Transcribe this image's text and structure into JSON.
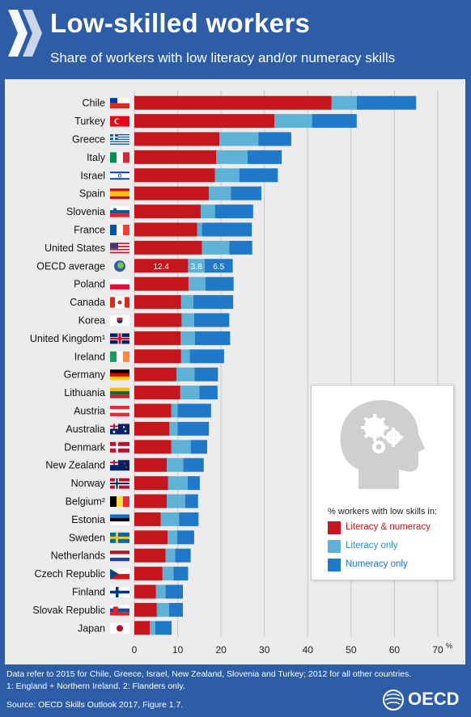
{
  "header": {
    "title": "Low-skilled workers",
    "subtitle": "Share of workers with low literacy and/or numeracy skills"
  },
  "colors": {
    "literacy_numeracy": "#c4161c",
    "literacy_only": "#5fb2d6",
    "numeracy_only": "#1f78c8",
    "background": "#2e5da8",
    "panel": "#ececec"
  },
  "legend": {
    "title": "% workers with low skills in:",
    "items": [
      "Literacy & numeracy",
      "Literacy only",
      "Numeracy only"
    ]
  },
  "chart_data": {
    "type": "bar",
    "orientation": "horizontal",
    "stacked": true,
    "categories": [
      "Chile",
      "Turkey",
      "Greece",
      "Italy",
      "Israel",
      "Spain",
      "Slovenia",
      "France",
      "United States",
      "OECD average",
      "Poland",
      "Canada",
      "Korea",
      "United Kingdom¹",
      "Ireland",
      "Germany",
      "Lithuania",
      "Austria",
      "Australia",
      "Denmark",
      "New Zealand",
      "Norway",
      "Belgium²",
      "Estonia",
      "Sweden",
      "Netherlands",
      "Czech Republic",
      "Finland",
      "Slovak Republic",
      "Japan"
    ],
    "flags": [
      "chile-flag",
      "turkey-flag",
      "greece-flag",
      "italy-flag",
      "israel-flag",
      "spain-flag",
      "slovenia-flag",
      "france-flag",
      "usa-flag",
      "oecd-globe-icon",
      "poland-flag",
      "canada-flag",
      "korea-flag",
      "uk-flag",
      "ireland-flag",
      "germany-flag",
      "lithuania-flag",
      "austria-flag",
      "australia-flag",
      "denmark-flag",
      "new-zealand-flag",
      "norway-flag",
      "belgium-flag",
      "estonia-flag",
      "sweden-flag",
      "netherlands-flag",
      "czech-flag",
      "finland-flag",
      "slovakia-flag",
      "japan-flag"
    ],
    "series": [
      {
        "name": "Literacy & numeracy",
        "values": [
          45.5,
          32.3,
          19.6,
          18.9,
          18.6,
          17.2,
          15.3,
          14.5,
          15.6,
          12.4,
          12.5,
          10.8,
          10.9,
          10.7,
          10.8,
          9.7,
          10.6,
          8.5,
          8.1,
          8.5,
          7.5,
          7.8,
          7.5,
          6.1,
          7.7,
          7.2,
          6.5,
          5.0,
          5.2,
          3.6
        ]
      },
      {
        "name": "Literacy only",
        "values": [
          5.8,
          8.7,
          9.0,
          7.2,
          5.6,
          5.1,
          3.3,
          1.1,
          6.3,
          3.8,
          3.9,
          2.8,
          2.9,
          3.3,
          2.0,
          4.2,
          4.4,
          1.5,
          1.9,
          4.5,
          3.8,
          4.5,
          4.2,
          4.2,
          2.2,
          2.2,
          2.5,
          2.2,
          2.8,
          1.2
        ]
      },
      {
        "name": "Numeracy only",
        "values": [
          13.7,
          10.3,
          7.6,
          7.9,
          8.9,
          7.0,
          8.8,
          11.5,
          5.3,
          6.5,
          6.5,
          9.2,
          8.1,
          8.1,
          7.9,
          5.4,
          4.2,
          7.7,
          7.2,
          3.8,
          4.7,
          2.8,
          3.0,
          4.5,
          3.9,
          3.6,
          3.4,
          4.0,
          3.2,
          3.8
        ]
      }
    ],
    "data_labels": {
      "row": "OECD average",
      "values": [
        "12.4",
        "3.8",
        "6.5"
      ]
    },
    "xlim": [
      0,
      70
    ],
    "xticks": [
      "0",
      "10",
      "20",
      "30",
      "40",
      "50",
      "60",
      "70"
    ],
    "x_unit": "%",
    "grid": true
  },
  "footer": {
    "note1": "Data refer to 2015 for Chile, Greece, Israel, New Zealand, Slovenia and Turkey; 2012 for all other countries.",
    "note2": "1: England + Northern Ireland. 2: Flanders only.",
    "source": "Source: OECD Skills Outlook 2017, Figure 1.7.",
    "logo": "OECD"
  }
}
